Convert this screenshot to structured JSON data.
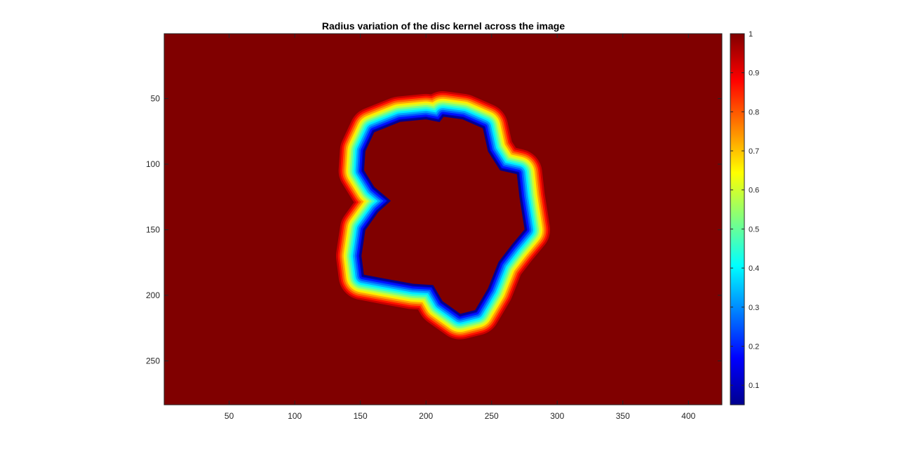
{
  "chart_data": {
    "type": "heatmap",
    "title": "Radius variation of the disc kernel across the image",
    "xlabel": "",
    "ylabel": "",
    "xlim": [
      0.5,
      425.5
    ],
    "ylim": [
      0.5,
      283.5
    ],
    "y_direction": "reverse",
    "xticks": [
      50,
      100,
      150,
      200,
      250,
      300,
      350,
      400
    ],
    "yticks": [
      50,
      100,
      150,
      200,
      250
    ],
    "colormap": "jet",
    "clim": [
      0.05,
      1
    ],
    "colorbar_ticks": [
      0.1,
      0.2,
      0.3,
      0.4,
      0.5,
      0.6,
      0.7,
      0.8,
      0.9,
      1
    ],
    "background_value": 1,
    "interior_value": 1,
    "transition_band_width": 20,
    "blob_outline": [
      [
        210,
        67
      ],
      [
        213,
        63
      ],
      [
        228,
        65
      ],
      [
        244,
        72
      ],
      [
        248,
        90
      ],
      [
        257,
        104
      ],
      [
        270,
        107
      ],
      [
        272,
        125
      ],
      [
        276,
        150
      ],
      [
        266,
        162
      ],
      [
        256,
        175
      ],
      [
        248,
        195
      ],
      [
        238,
        212
      ],
      [
        226,
        215
      ],
      [
        212,
        205
      ],
      [
        205,
        193
      ],
      [
        190,
        192
      ],
      [
        168,
        188
      ],
      [
        152,
        185
      ],
      [
        150,
        170
      ],
      [
        153,
        150
      ],
      [
        163,
        136
      ],
      [
        172,
        128
      ],
      [
        160,
        118
      ],
      [
        152,
        105
      ],
      [
        153,
        90
      ],
      [
        160,
        75
      ],
      [
        180,
        67
      ],
      [
        200,
        65
      ]
    ],
    "grid": false,
    "colorbar_location": "right"
  }
}
